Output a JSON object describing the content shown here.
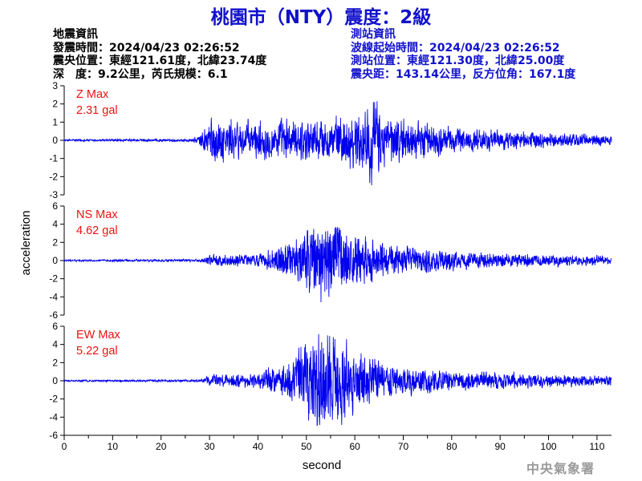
{
  "title": "桃園市（NTY）震度：2級",
  "event_info": {
    "heading": "地震資訊",
    "origin_time": "發震時間：2024/04/23 02:26:52",
    "epicenter": "震央位置：東經121.61度，北緯23.74度",
    "depth_magnitude": "深　度：9.2公里，芮氏規模：6.1"
  },
  "station_info": {
    "heading": "測站資訊",
    "wave_start": "波線起始時間：2024/04/23 02:26:52",
    "station_location": "測站位置：東經121.30度，北緯25.00度",
    "distance_azimuth": "震央距：143.14公里，反方位角：167.1度"
  },
  "agency": "中央氣象署",
  "colors": {
    "trace": "#0000ee",
    "title": "#1111cc",
    "max_label": "#ee1111"
  },
  "chart_data": {
    "type": "line",
    "xlabel": "second",
    "ylabel": "acceleration",
    "xlim": [
      0,
      113
    ],
    "xticks": [
      0,
      10,
      20,
      30,
      40,
      50,
      60,
      70,
      80,
      90,
      100,
      110
    ],
    "panels": [
      {
        "name": "Z",
        "max_label": "Z Max",
        "max_value": "2.31 gal",
        "ylim": [
          -3,
          3
        ],
        "yticks": [
          3,
          2,
          1,
          0,
          -1,
          -2,
          -3
        ],
        "envelope_t": [
          0,
          26,
          28,
          30,
          33,
          40,
          50,
          58,
          62,
          64,
          66,
          70,
          80,
          90,
          100,
          113
        ],
        "envelope_amp": [
          0.05,
          0.07,
          0.25,
          1.1,
          1.0,
          0.9,
          1.0,
          1.15,
          1.6,
          2.1,
          1.3,
          1.0,
          0.65,
          0.45,
          0.35,
          0.3
        ]
      },
      {
        "name": "NS",
        "max_label": "NS Max",
        "max_value": "4.62 gal",
        "ylim": [
          -6,
          6
        ],
        "yticks": [
          6,
          4,
          2,
          0,
          -2,
          -4,
          -6
        ],
        "envelope_t": [
          0,
          28,
          30,
          40,
          46,
          50,
          53,
          56,
          60,
          65,
          70,
          80,
          90,
          100,
          113
        ],
        "envelope_amp": [
          0.08,
          0.12,
          0.5,
          0.6,
          1.6,
          3.3,
          4.4,
          3.8,
          2.6,
          1.7,
          1.3,
          0.85,
          0.7,
          0.55,
          0.45
        ]
      },
      {
        "name": "EW",
        "max_label": "EW Max",
        "max_value": "5.22 gal",
        "ylim": [
          -6,
          6
        ],
        "yticks": [
          6,
          4,
          2,
          0,
          -2,
          -4,
          -6
        ],
        "envelope_t": [
          0,
          28,
          30,
          40,
          46,
          50,
          53,
          56,
          60,
          65,
          70,
          80,
          90,
          100,
          113
        ],
        "envelope_amp": [
          0.08,
          0.12,
          0.55,
          0.7,
          1.8,
          4.0,
          4.8,
          4.4,
          2.8,
          1.8,
          1.4,
          0.95,
          0.8,
          0.6,
          0.5
        ]
      }
    ]
  }
}
